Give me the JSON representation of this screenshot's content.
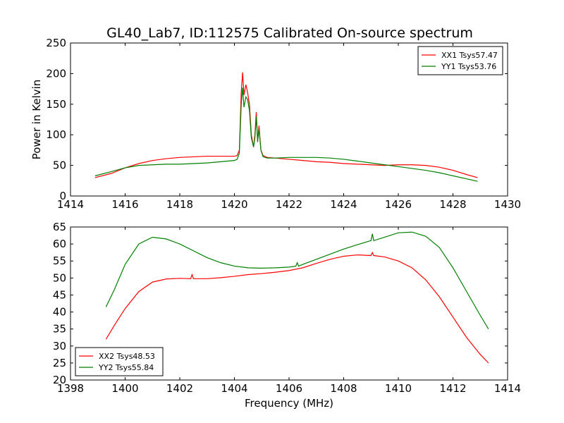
{
  "figure_title": "GL40_Lab7, ID:112575 Calibrated On-source spectrum",
  "colors": {
    "red": "#ff0000",
    "green": "#008000"
  },
  "chart_data": [
    {
      "type": "line",
      "title": "",
      "xlabel": "",
      "ylabel": "Power in Kelvin",
      "xlim": [
        1414,
        1430
      ],
      "ylim": [
        0,
        250
      ],
      "xticks": [
        1414,
        1416,
        1418,
        1420,
        1422,
        1424,
        1426,
        1428,
        1430
      ],
      "yticks": [
        0,
        50,
        100,
        150,
        200,
        250
      ],
      "grid": false,
      "legend_position": "top-right",
      "series": [
        {
          "name": "XX1 Tsys57.47",
          "color": "#ff0000",
          "x": [
            1414.9,
            1415.5,
            1416.0,
            1416.5,
            1417.0,
            1417.5,
            1418.0,
            1418.5,
            1419.0,
            1419.5,
            1420.0,
            1420.1,
            1420.18,
            1420.25,
            1420.3,
            1420.35,
            1420.42,
            1420.48,
            1420.55,
            1420.62,
            1420.7,
            1420.75,
            1420.8,
            1420.85,
            1420.9,
            1420.97,
            1421.05,
            1421.2,
            1421.5,
            1422.0,
            1422.5,
            1423.0,
            1423.5,
            1424.0,
            1424.5,
            1425.0,
            1425.5,
            1426.0,
            1426.5,
            1427.0,
            1427.5,
            1428.0,
            1428.5,
            1428.9
          ],
          "y": [
            30,
            37,
            46,
            53,
            58,
            61,
            63,
            64,
            65,
            65,
            65,
            66,
            75,
            170,
            202,
            165,
            182,
            170,
            150,
            100,
            80,
            100,
            137,
            90,
            115,
            75,
            66,
            63,
            62,
            60,
            58,
            56,
            55,
            53,
            52,
            51,
            50,
            51,
            51,
            50,
            47,
            42,
            35,
            30
          ]
        },
        {
          "name": "YY1 Tsys53.76",
          "color": "#008000",
          "x": [
            1414.9,
            1415.5,
            1416.0,
            1416.5,
            1417.0,
            1417.5,
            1418.0,
            1418.5,
            1419.0,
            1419.5,
            1420.0,
            1420.1,
            1420.18,
            1420.25,
            1420.3,
            1420.35,
            1420.42,
            1420.48,
            1420.55,
            1420.62,
            1420.7,
            1420.75,
            1420.8,
            1420.85,
            1420.9,
            1420.97,
            1421.05,
            1421.2,
            1421.5,
            1422.0,
            1422.5,
            1423.0,
            1423.5,
            1424.0,
            1424.5,
            1425.0,
            1425.5,
            1426.0,
            1426.5,
            1427.0,
            1427.5,
            1428.0,
            1428.5,
            1428.9
          ],
          "y": [
            33,
            40,
            46,
            50,
            51,
            52,
            52,
            53,
            54,
            56,
            58,
            60,
            70,
            150,
            177,
            145,
            162,
            158,
            140,
            95,
            80,
            95,
            130,
            88,
            110,
            75,
            64,
            62,
            62,
            63,
            63,
            63,
            62,
            60,
            57,
            54,
            51,
            48,
            45,
            42,
            38,
            33,
            28,
            24
          ]
        }
      ]
    },
    {
      "type": "line",
      "title": "",
      "xlabel": "Frequency (MHz)",
      "ylabel": "",
      "xlim": [
        1398,
        1414
      ],
      "ylim": [
        20,
        65
      ],
      "xticks": [
        1398,
        1400,
        1402,
        1404,
        1406,
        1408,
        1410,
        1412,
        1414
      ],
      "yticks": [
        20,
        25,
        30,
        35,
        40,
        45,
        50,
        55,
        60,
        65
      ],
      "grid": false,
      "legend_position": "bottom-left",
      "series": [
        {
          "name": "XX2 Tsys48.53",
          "color": "#ff0000",
          "x": [
            1399.3,
            1399.6,
            1400.0,
            1400.5,
            1401.0,
            1401.5,
            1402.0,
            1402.4,
            1402.45,
            1402.5,
            1403.0,
            1403.5,
            1404.0,
            1404.5,
            1405.0,
            1405.5,
            1406.0,
            1406.5,
            1407.0,
            1407.5,
            1408.0,
            1408.5,
            1409.0,
            1409.05,
            1409.1,
            1409.5,
            1410.0,
            1410.5,
            1411.0,
            1411.5,
            1412.0,
            1412.5,
            1413.0,
            1413.3
          ],
          "y": [
            32,
            36,
            41,
            46,
            48.8,
            49.7,
            49.9,
            49.8,
            51,
            49.8,
            49.8,
            50.1,
            50.5,
            51,
            51.3,
            51.7,
            52.2,
            53,
            54.3,
            55.5,
            56.4,
            56.8,
            56.6,
            57.5,
            56.6,
            56.2,
            55,
            53,
            49.5,
            44.5,
            38.5,
            32.5,
            27.5,
            25
          ]
        },
        {
          "name": "YY2 Tsys55.84",
          "color": "#008000",
          "x": [
            1399.3,
            1399.6,
            1400.0,
            1400.5,
            1401.0,
            1401.5,
            1402.0,
            1402.5,
            1403.0,
            1403.5,
            1404.0,
            1404.5,
            1405.0,
            1405.5,
            1406.0,
            1406.25,
            1406.3,
            1406.35,
            1406.5,
            1407.0,
            1407.5,
            1408.0,
            1408.5,
            1409.0,
            1409.05,
            1409.1,
            1409.5,
            1410.0,
            1410.5,
            1411.0,
            1411.5,
            1412.0,
            1412.5,
            1413.0,
            1413.3
          ],
          "y": [
            41.5,
            46.5,
            54,
            60,
            62,
            61.5,
            60,
            58,
            56,
            54.5,
            53.5,
            53,
            52.9,
            53,
            53.2,
            53.5,
            54.5,
            53.5,
            54,
            55.5,
            57,
            58.5,
            59.8,
            61,
            63,
            61,
            62,
            63.3,
            63.5,
            62.3,
            59,
            53,
            46,
            39,
            35
          ]
        }
      ]
    }
  ]
}
